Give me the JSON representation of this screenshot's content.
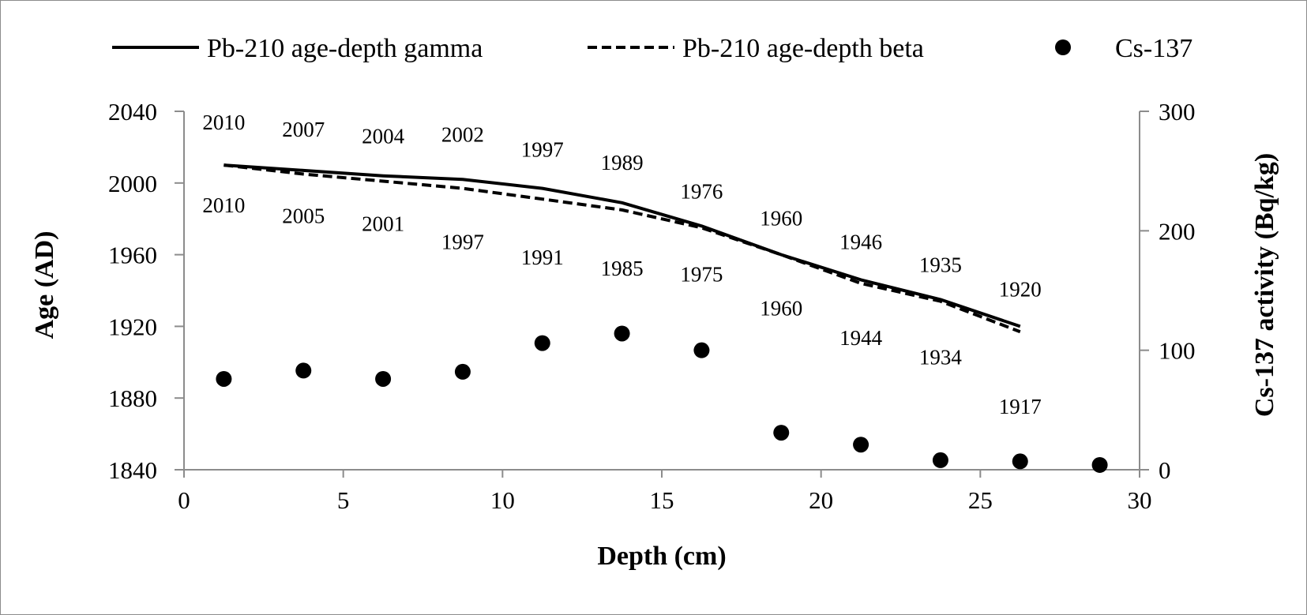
{
  "chart_data": {
    "type": "line",
    "title": "",
    "xlabel": "Depth (cm)",
    "ylabel": "Age (AD)",
    "y2label": "Cs-137 activity (Bq/kg)",
    "xlim": [
      0,
      30
    ],
    "ylim": [
      1840,
      2040
    ],
    "y2lim": [
      0,
      300
    ],
    "x_ticks": [
      0,
      5,
      10,
      15,
      20,
      25,
      30
    ],
    "y_ticks": [
      1840,
      1880,
      1920,
      1960,
      2000,
      2040
    ],
    "y2_ticks": [
      0,
      100,
      200,
      300
    ],
    "grid": false,
    "legend_position": "top",
    "series": [
      {
        "name": "Pb-210 age-depth gamma",
        "style": "solid",
        "axis": "left",
        "color": "#000000",
        "x": [
          1.25,
          3.75,
          6.25,
          8.75,
          11.25,
          13.75,
          16.25,
          18.75,
          21.25,
          23.75,
          26.25
        ],
        "values": [
          2010,
          2007,
          2004,
          2002,
          1997,
          1989,
          1976,
          1960,
          1946,
          1935,
          1920
        ],
        "labels": [
          "2010",
          "2007",
          "2004",
          "2002",
          "1997",
          "1989",
          "1976",
          "1960",
          "1946",
          "1935",
          "1920"
        ]
      },
      {
        "name": "Pb-210 age-depth beta",
        "style": "dashed",
        "axis": "left",
        "color": "#000000",
        "x": [
          1.25,
          3.75,
          6.25,
          8.75,
          11.25,
          13.75,
          16.25,
          18.75,
          21.25,
          23.75,
          26.25
        ],
        "values": [
          2010,
          2005,
          2001,
          1997,
          1991,
          1985,
          1975,
          1960,
          1944,
          1934,
          1917
        ],
        "labels": [
          "2010",
          "2005",
          "2001",
          "1997",
          "1991",
          "1985",
          "1975",
          "1960",
          "1944",
          "1934",
          "1917"
        ]
      },
      {
        "name": "Cs-137",
        "style": "marker",
        "axis": "right",
        "color": "#000000",
        "x": [
          1.25,
          3.75,
          6.25,
          8.75,
          11.25,
          13.75,
          16.25,
          18.75,
          21.25,
          23.75,
          26.25,
          28.75
        ],
        "values": [
          76,
          83,
          76,
          82,
          106,
          114,
          100,
          31,
          21,
          8,
          7,
          4
        ]
      }
    ]
  }
}
